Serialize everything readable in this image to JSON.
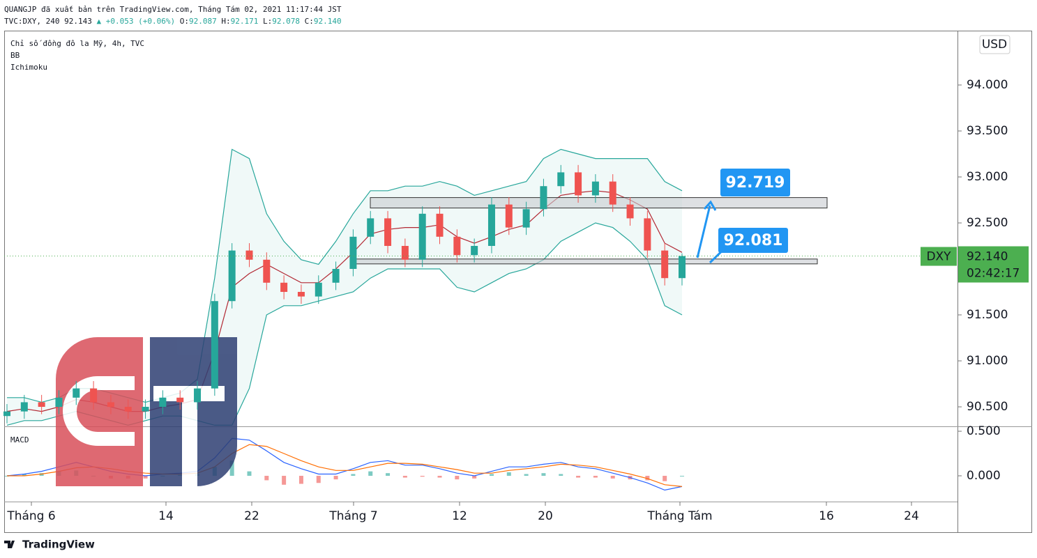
{
  "header": {
    "line1": "QUANGJP đã xuất bản trên TradingView.com, Tháng Tám 02, 2021 11:17:44 JST",
    "symbol": "TVC:DXY, 240",
    "last": "92.143",
    "change": "▲ +0.053 (+0.06%)",
    "o_label": "O:",
    "o": "92.087",
    "h_label": "H:",
    "h": "92.171",
    "l_label": "L:",
    "l": "92.078",
    "c_label": "C:",
    "c": "92.140"
  },
  "legend": [
    "Chỉ số đồng đô la Mỹ, 4h, TVC",
    "BB",
    "Ichimoku"
  ],
  "currency": "USD",
  "time_axis": [
    "Tháng 6",
    "14",
    "22",
    "Tháng 7",
    "12",
    "20",
    "Tháng Tám",
    "16",
    "24"
  ],
  "footer": "TradingView",
  "chart_data": [
    {
      "type": "candlestick",
      "up_color": "#26a69a",
      "down_color": "#ef5350",
      "bb_color": "#26a69a",
      "basis_color": "#b22833",
      "ylim": [
        90.288,
        94.591
      ],
      "yticks": [
        {
          "value": 94,
          "label": "94.000"
        },
        {
          "value": 93.5,
          "label": "93.500"
        },
        {
          "value": 93,
          "label": "93.000"
        },
        {
          "value": 92.5,
          "label": "92.500"
        },
        {
          "value": 92,
          "label": "92.000"
        },
        {
          "value": 91.5,
          "label": "91.500"
        },
        {
          "value": 91,
          "label": "91.000"
        },
        {
          "value": 90.5,
          "label": "90.500"
        }
      ],
      "open": [
        90.4,
        90.45,
        90.55,
        90.5,
        90.6,
        90.7,
        90.55,
        90.5,
        90.45,
        90.5,
        90.6,
        90.55,
        90.7,
        91.65,
        92.2,
        92.1,
        91.85,
        91.75,
        91.7,
        91.85,
        92.0,
        92.35,
        92.55,
        92.25,
        92.1,
        92.6,
        92.35,
        92.15,
        92.25,
        92.7,
        92.45,
        92.65,
        92.9,
        93.05,
        92.8,
        92.95,
        92.7,
        92.55,
        92.2,
        91.9
      ],
      "high": [
        90.53,
        90.63,
        90.63,
        90.68,
        90.78,
        90.78,
        90.63,
        90.58,
        90.58,
        90.68,
        90.68,
        90.78,
        91.73,
        92.28,
        92.28,
        92.18,
        91.93,
        91.83,
        91.93,
        92.08,
        92.43,
        92.63,
        92.63,
        92.33,
        92.68,
        92.68,
        92.43,
        92.33,
        92.78,
        92.78,
        92.73,
        92.98,
        93.13,
        93.13,
        93.03,
        93.03,
        92.78,
        92.63,
        92.28,
        92.17
      ],
      "low": [
        90.32,
        90.37,
        90.42,
        90.42,
        90.52,
        90.47,
        90.42,
        90.37,
        90.37,
        90.42,
        90.47,
        90.47,
        90.62,
        91.57,
        92.02,
        91.77,
        91.67,
        91.62,
        91.62,
        91.77,
        91.92,
        92.27,
        92.17,
        92.02,
        92.02,
        92.27,
        92.07,
        92.07,
        92.17,
        92.37,
        92.37,
        92.57,
        92.82,
        92.72,
        92.72,
        92.62,
        92.47,
        92.12,
        91.82,
        91.82
      ],
      "close": [
        90.45,
        90.55,
        90.5,
        90.6,
        90.7,
        90.55,
        90.5,
        90.45,
        90.5,
        90.6,
        90.55,
        90.7,
        91.65,
        92.2,
        92.1,
        91.85,
        91.75,
        91.7,
        91.85,
        92.0,
        92.35,
        92.55,
        92.25,
        92.1,
        92.6,
        92.35,
        92.15,
        92.25,
        92.7,
        92.45,
        92.65,
        92.9,
        93.05,
        92.8,
        92.95,
        92.7,
        92.55,
        92.2,
        91.9,
        92.14
      ],
      "bb_upper": [
        90.6,
        90.6,
        90.55,
        90.6,
        90.7,
        90.7,
        90.65,
        90.6,
        90.55,
        90.6,
        90.65,
        90.8,
        91.9,
        93.3,
        93.2,
        92.6,
        92.3,
        92.1,
        92.05,
        92.3,
        92.6,
        92.85,
        92.85,
        92.9,
        92.9,
        92.95,
        92.9,
        92.8,
        92.85,
        92.9,
        92.95,
        93.2,
        93.3,
        93.25,
        93.2,
        93.2,
        93.2,
        93.2,
        92.95,
        92.85
      ],
      "bb_basis": [
        90.45,
        90.48,
        90.45,
        90.5,
        90.58,
        90.55,
        90.5,
        90.45,
        90.45,
        90.5,
        90.53,
        90.58,
        91.1,
        91.8,
        91.95,
        92.05,
        91.95,
        91.85,
        91.85,
        92.0,
        92.18,
        92.38,
        92.43,
        92.45,
        92.45,
        92.48,
        92.35,
        92.28,
        92.35,
        92.43,
        92.48,
        92.65,
        92.8,
        92.83,
        92.85,
        92.83,
        92.75,
        92.65,
        92.28,
        92.18
      ],
      "bb_lower": [
        90.3,
        90.35,
        90.35,
        90.4,
        90.45,
        90.4,
        90.35,
        90.3,
        90.35,
        90.4,
        90.4,
        90.35,
        90.3,
        90.3,
        90.7,
        91.5,
        91.6,
        91.6,
        91.65,
        91.7,
        91.75,
        91.9,
        92.0,
        92.0,
        92.0,
        92.0,
        91.8,
        91.75,
        91.85,
        91.95,
        92.0,
        92.1,
        92.3,
        92.4,
        92.5,
        92.45,
        92.3,
        92.1,
        91.6,
        91.5
      ],
      "annotations": [
        92.719,
        92.081
      ],
      "last_price": {
        "value": 92.14,
        "label": "92.140"
      },
      "symbol_tag": "DXY",
      "countdown": "02:42:17",
      "price_line_color": "#4caf50"
    },
    {
      "type": "macd",
      "title": "MACD",
      "macd_color": "#2962ff",
      "signal_color": "#ff6d00",
      "hist_up": "#26a69a",
      "hist_down": "#ef5350",
      "ylim": [
        -0.289,
        0.555
      ],
      "yticks": [
        {
          "value": 0.5,
          "label": "0.500"
        },
        {
          "value": 0,
          "label": "0.000"
        }
      ],
      "macd": [
        0.0,
        0.02,
        0.05,
        0.1,
        0.15,
        0.1,
        0.05,
        0.02,
        0.0,
        0.02,
        0.03,
        0.05,
        0.2,
        0.42,
        0.4,
        0.28,
        0.15,
        0.08,
        0.02,
        0.02,
        0.08,
        0.15,
        0.17,
        0.12,
        0.12,
        0.08,
        0.03,
        0.0,
        0.05,
        0.1,
        0.1,
        0.13,
        0.15,
        0.1,
        0.08,
        0.03,
        -0.02,
        -0.08,
        -0.16,
        -0.12
      ],
      "signal": [
        0.0,
        0.0,
        0.02,
        0.05,
        0.09,
        0.1,
        0.08,
        0.05,
        0.03,
        0.02,
        0.02,
        0.03,
        0.1,
        0.25,
        0.35,
        0.33,
        0.25,
        0.17,
        0.1,
        0.06,
        0.06,
        0.1,
        0.14,
        0.14,
        0.13,
        0.1,
        0.07,
        0.03,
        0.03,
        0.06,
        0.08,
        0.1,
        0.13,
        0.12,
        0.1,
        0.06,
        0.02,
        -0.03,
        -0.1,
        -0.12
      ],
      "histogram": [
        0,
        0.02,
        0.03,
        0.05,
        0.06,
        0,
        -0.03,
        -0.03,
        -0.03,
        0,
        0.01,
        0.02,
        0.1,
        0.17,
        0.05,
        -0.05,
        -0.1,
        -0.09,
        -0.08,
        -0.04,
        0.02,
        0.05,
        0.03,
        -0.02,
        -0.01,
        -0.02,
        -0.04,
        -0.03,
        0.02,
        0.04,
        0.02,
        0.03,
        0.02,
        -0.02,
        -0.02,
        -0.03,
        -0.04,
        -0.05,
        -0.06,
        0.0
      ]
    }
  ]
}
